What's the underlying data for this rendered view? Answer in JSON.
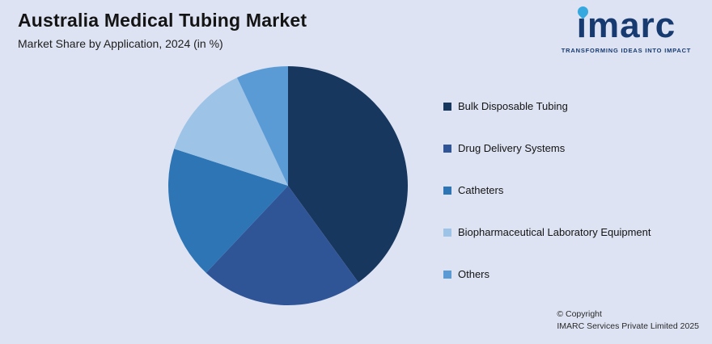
{
  "header": {
    "title": "Australia Medical Tubing Market",
    "subtitle": "Market Share by Application, 2024 (in %)"
  },
  "logo": {
    "wordmark": "imarc",
    "tagline": "TRANSFORMING IDEAS INTO IMPACT",
    "brand_color": "#173a70",
    "accent_color": "#35a8e0"
  },
  "chart_data": {
    "type": "pie",
    "title": "Australia Medical Tubing Market — Market Share by Application, 2024 (in %)",
    "categories": [
      "Bulk Disposable Tubing",
      "Drug Delivery Systems",
      "Catheters",
      "Biopharmaceutical Laboratory Equipment",
      "Others"
    ],
    "values": [
      40,
      22,
      18,
      13,
      7
    ],
    "colors": [
      "#17375e",
      "#2f5597",
      "#2e75b6",
      "#9dc3e6",
      "#5b9bd5"
    ],
    "start_angle_deg": 0,
    "direction": "clockwise",
    "legend_position": "right",
    "data_labels": false
  },
  "footer": {
    "line1": "© Copyright",
    "line2": "IMARC Services Private Limited 2025"
  }
}
